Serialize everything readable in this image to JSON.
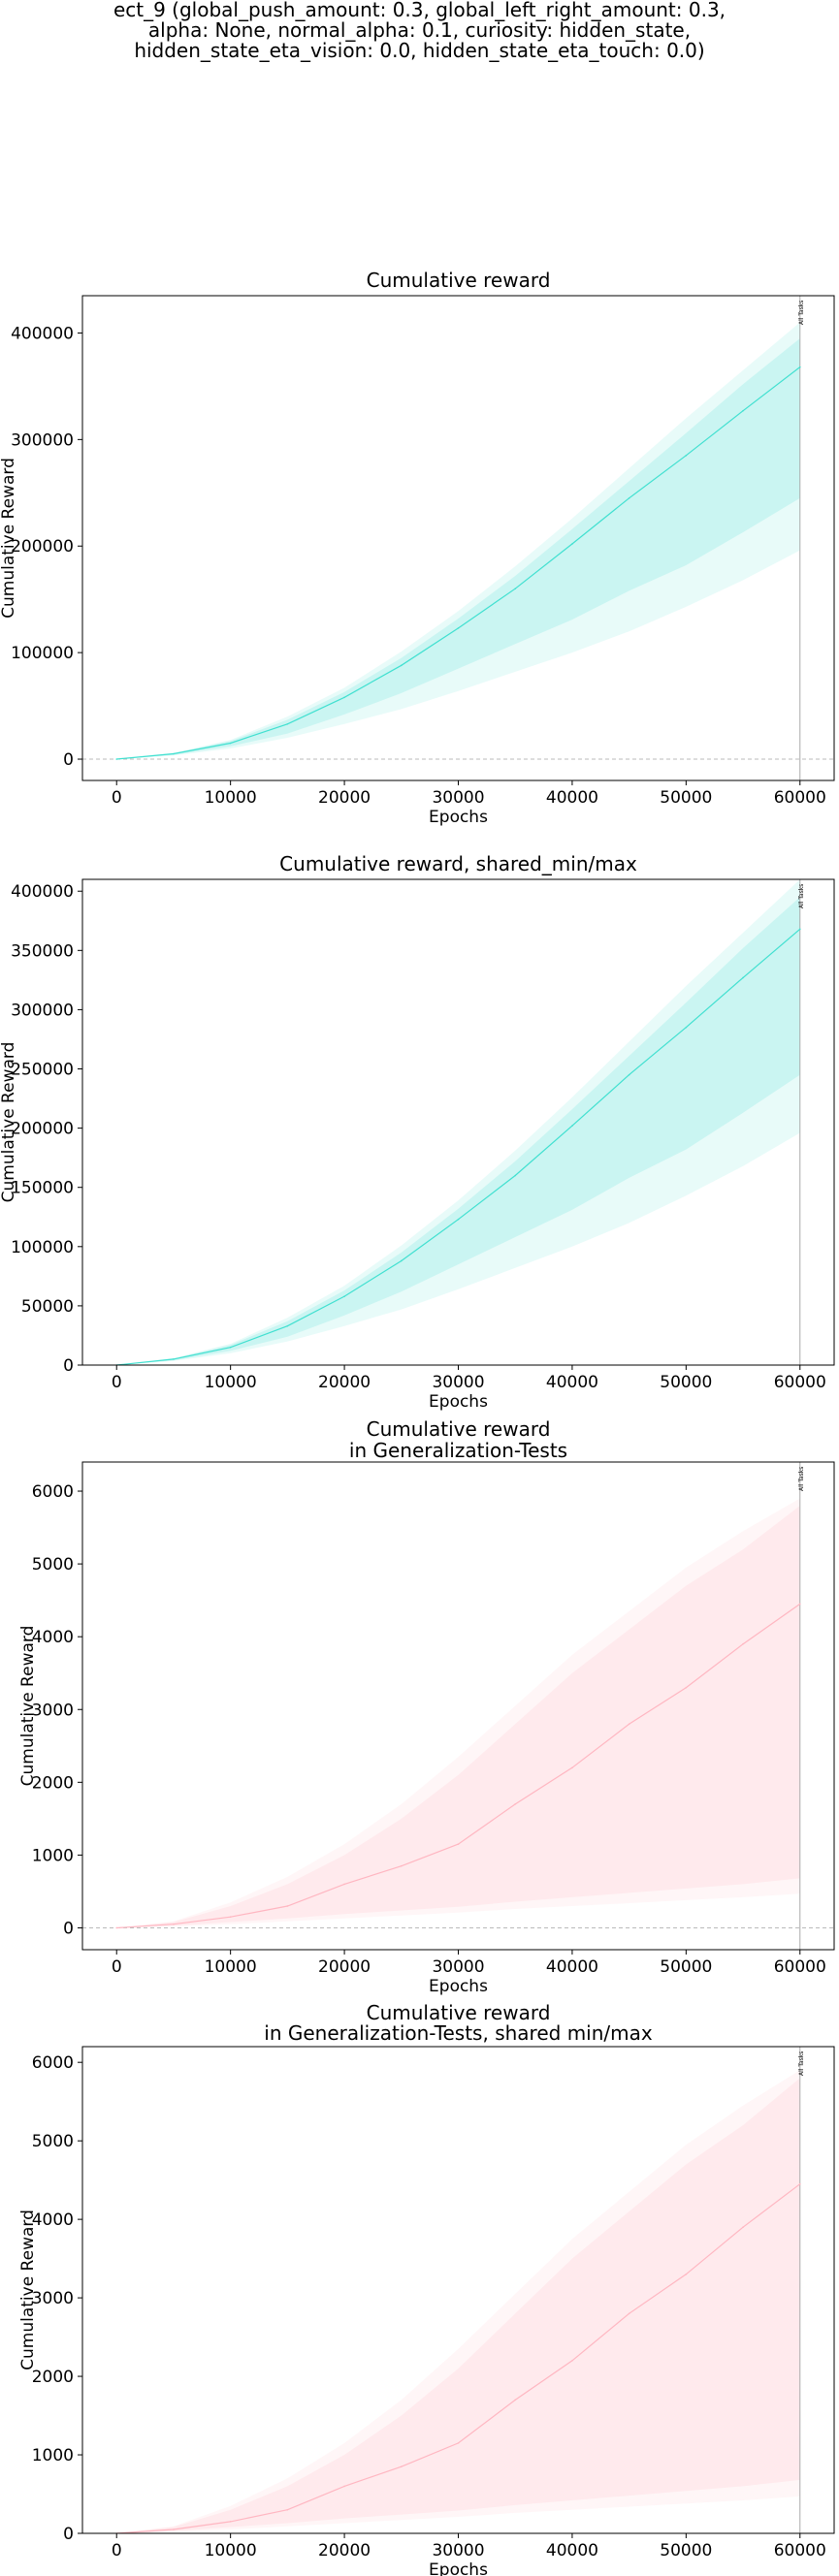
{
  "suptitle": [
    "ect_9 (global_push_amount: 0.3, global_left_right_amount: 0.3,",
    "alpha: None, normal_alpha: 0.1, curiosity: hidden_state,",
    "hidden_state_eta_vision: 0.0, hidden_state_eta_touch: 0.0)"
  ],
  "colors": {
    "train": "#40e0d0",
    "test": "#ffb6c1",
    "zero_line": "#bbbbbb",
    "marker": "#aaaaaa"
  },
  "chart_data": [
    {
      "type": "area",
      "title": [
        "Cumulative reward"
      ],
      "xlabel": "Epochs",
      "ylabel": "Cumulative Reward",
      "xlim": [
        -3000,
        63000
      ],
      "ylim": [
        -20000,
        435000
      ],
      "xticks": [
        0,
        10000,
        20000,
        30000,
        40000,
        50000,
        60000
      ],
      "yticks": [
        0,
        100000,
        200000,
        300000,
        400000
      ],
      "zero_line": true,
      "marker": {
        "x": 60000,
        "label": "All Tasks"
      },
      "x": [
        0,
        5000,
        10000,
        15000,
        20000,
        25000,
        30000,
        35000,
        40000,
        45000,
        50000,
        55000,
        60000
      ],
      "series": [
        {
          "role": "median",
          "values": [
            0,
            5000,
            15000,
            33000,
            58000,
            88000,
            123000,
            160000,
            202000,
            245000,
            285000,
            327000,
            368000
          ]
        },
        {
          "role": "q_low",
          "values": [
            0,
            4000,
            12000,
            24000,
            42000,
            62000,
            85000,
            108000,
            131000,
            158000,
            182000,
            213000,
            245000
          ]
        },
        {
          "role": "q_high",
          "values": [
            0,
            5500,
            17000,
            37000,
            63000,
            95000,
            132000,
            172000,
            216000,
            261000,
            306000,
            352000,
            395000
          ]
        },
        {
          "role": "min",
          "values": [
            0,
            3500,
            10000,
            20000,
            33000,
            47000,
            64000,
            82000,
            100000,
            120000,
            143000,
            168000,
            196000
          ]
        },
        {
          "role": "max",
          "values": [
            0,
            6000,
            18000,
            40000,
            67000,
            101000,
            139000,
            181000,
            226000,
            273000,
            320000,
            365000,
            410000
          ]
        }
      ]
    },
    {
      "type": "area",
      "title": [
        "Cumulative reward, shared_min/max"
      ],
      "xlabel": "Epochs",
      "ylabel": "Cumulative Reward",
      "xlim": [
        -3000,
        63000
      ],
      "ylim": [
        0,
        410000
      ],
      "xticks": [
        0,
        10000,
        20000,
        30000,
        40000,
        50000,
        60000
      ],
      "yticks": [
        0,
        50000,
        100000,
        150000,
        200000,
        250000,
        300000,
        350000,
        400000
      ],
      "zero_line": false,
      "marker": {
        "x": 60000,
        "label": "All Tasks"
      },
      "x": [
        0,
        5000,
        10000,
        15000,
        20000,
        25000,
        30000,
        35000,
        40000,
        45000,
        50000,
        55000,
        60000
      ],
      "series": [
        {
          "role": "median",
          "values": [
            0,
            5000,
            15000,
            33000,
            58000,
            88000,
            123000,
            160000,
            202000,
            245000,
            285000,
            327000,
            368000
          ]
        },
        {
          "role": "q_low",
          "values": [
            0,
            4000,
            12000,
            24000,
            42000,
            62000,
            85000,
            108000,
            131000,
            158000,
            182000,
            213000,
            245000
          ]
        },
        {
          "role": "q_high",
          "values": [
            0,
            5500,
            17000,
            37000,
            63000,
            95000,
            132000,
            172000,
            216000,
            261000,
            306000,
            352000,
            395000
          ]
        },
        {
          "role": "min",
          "values": [
            0,
            3500,
            10000,
            20000,
            33000,
            47000,
            64000,
            82000,
            100000,
            120000,
            143000,
            168000,
            196000
          ]
        },
        {
          "role": "max",
          "values": [
            0,
            6000,
            18000,
            40000,
            67000,
            101000,
            139000,
            181000,
            226000,
            273000,
            320000,
            365000,
            410000
          ]
        }
      ]
    },
    {
      "type": "area",
      "title": [
        "Cumulative reward",
        "in Generalization-Tests"
      ],
      "xlabel": "Epochs",
      "ylabel": "Cumulative Reward",
      "xlim": [
        -3000,
        63000
      ],
      "ylim": [
        -300,
        6400
      ],
      "xticks": [
        0,
        10000,
        20000,
        30000,
        40000,
        50000,
        60000
      ],
      "yticks": [
        0,
        1000,
        2000,
        3000,
        4000,
        5000,
        6000
      ],
      "zero_line": true,
      "marker": {
        "x": 60000,
        "label": "All Tasks"
      },
      "x": [
        0,
        5000,
        10000,
        15000,
        20000,
        25000,
        30000,
        35000,
        40000,
        45000,
        50000,
        55000,
        60000
      ],
      "series": [
        {
          "role": "median",
          "values": [
            0,
            50,
            150,
            300,
            600,
            850,
            1150,
            1700,
            2200,
            2800,
            3300,
            3900,
            4450
          ]
        },
        {
          "role": "q_low",
          "values": [
            0,
            30,
            80,
            130,
            190,
            240,
            290,
            360,
            420,
            480,
            540,
            600,
            680
          ]
        },
        {
          "role": "q_high",
          "values": [
            0,
            80,
            300,
            600,
            1000,
            1500,
            2100,
            2800,
            3500,
            4100,
            4700,
            5200,
            5800
          ]
        },
        {
          "role": "min",
          "values": [
            0,
            20,
            50,
            90,
            130,
            170,
            210,
            260,
            300,
            340,
            380,
            420,
            470
          ]
        },
        {
          "role": "max",
          "values": [
            0,
            90,
            350,
            700,
            1150,
            1700,
            2350,
            3050,
            3750,
            4350,
            4950,
            5450,
            5900
          ]
        }
      ]
    },
    {
      "type": "area",
      "title": [
        "Cumulative reward",
        "in Generalization-Tests, shared min/max"
      ],
      "xlabel": "Epochs",
      "ylabel": "Cumulative Reward",
      "xlim": [
        -3000,
        63000
      ],
      "ylim": [
        0,
        6200
      ],
      "xticks": [
        0,
        10000,
        20000,
        30000,
        40000,
        50000,
        60000
      ],
      "yticks": [
        0,
        1000,
        2000,
        3000,
        4000,
        5000,
        6000
      ],
      "zero_line": false,
      "marker": {
        "x": 60000,
        "label": "All Tasks"
      },
      "x": [
        0,
        5000,
        10000,
        15000,
        20000,
        25000,
        30000,
        35000,
        40000,
        45000,
        50000,
        55000,
        60000
      ],
      "series": [
        {
          "role": "median",
          "values": [
            0,
            50,
            150,
            300,
            600,
            850,
            1150,
            1700,
            2200,
            2800,
            3300,
            3900,
            4450
          ]
        },
        {
          "role": "q_low",
          "values": [
            0,
            30,
            80,
            130,
            190,
            240,
            290,
            360,
            420,
            480,
            540,
            600,
            680
          ]
        },
        {
          "role": "q_high",
          "values": [
            0,
            80,
            300,
            600,
            1000,
            1500,
            2100,
            2800,
            3500,
            4100,
            4700,
            5200,
            5800
          ]
        },
        {
          "role": "min",
          "values": [
            0,
            20,
            50,
            90,
            130,
            170,
            210,
            260,
            300,
            340,
            380,
            420,
            470
          ]
        },
        {
          "role": "max",
          "values": [
            0,
            90,
            350,
            700,
            1150,
            1700,
            2350,
            3050,
            3750,
            4350,
            4950,
            5450,
            5900
          ]
        }
      ]
    }
  ]
}
